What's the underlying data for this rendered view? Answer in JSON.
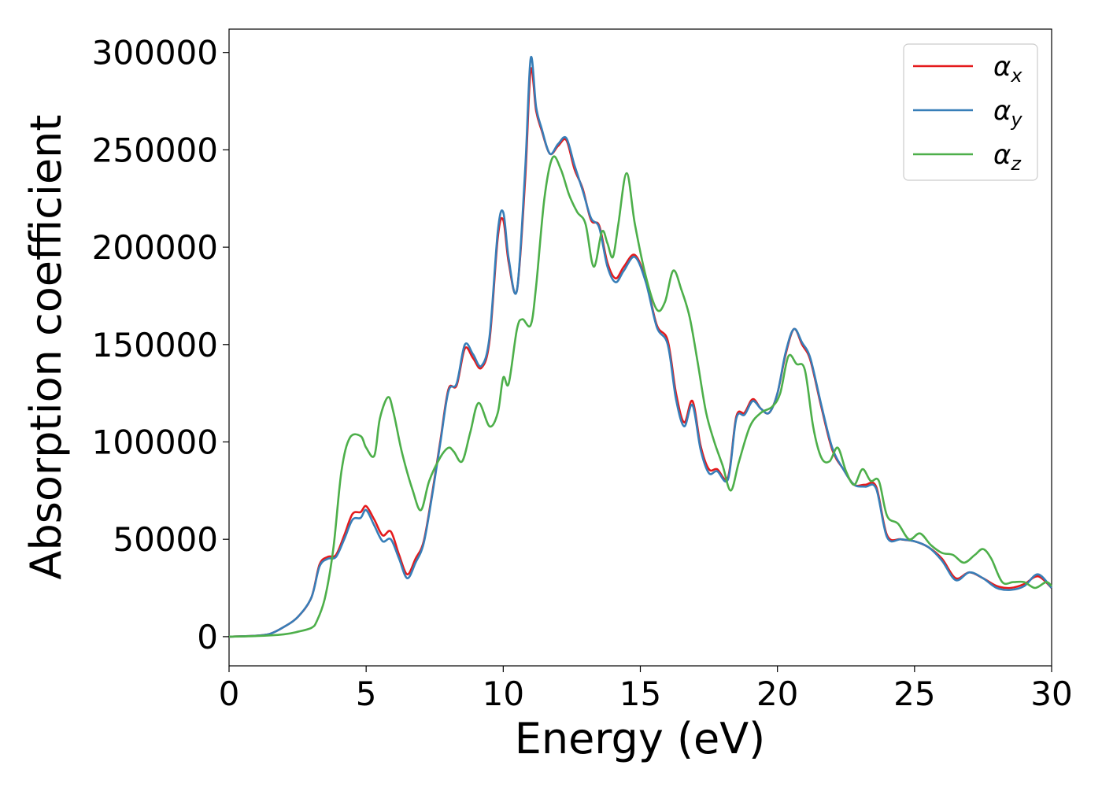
{
  "chart_data": {
    "type": "line",
    "xlabel": "Energy (eV)",
    "ylabel": "Absorption coefficient",
    "xlim": [
      0,
      30
    ],
    "ylim": [
      -15000,
      312000
    ],
    "xticks": [
      0,
      5,
      10,
      15,
      20,
      25,
      30
    ],
    "xtick_labels": [
      "0",
      "5",
      "10",
      "15",
      "20",
      "25",
      "30"
    ],
    "yticks": [
      0,
      50000,
      100000,
      150000,
      200000,
      250000,
      300000
    ],
    "ytick_labels": [
      "0",
      "50000",
      "100000",
      "150000",
      "200000",
      "250000",
      "300000"
    ],
    "grid": false,
    "legend_position": "top-right",
    "series": [
      {
        "name": "α",
        "subscript": "x",
        "color": "#e41a1c",
        "x": [
          0,
          1,
          1.5,
          2,
          2.5,
          3,
          3.3,
          3.6,
          3.9,
          4.2,
          4.5,
          4.8,
          5.0,
          5.3,
          5.6,
          5.9,
          6.2,
          6.5,
          6.8,
          7.1,
          7.4,
          7.7,
          8.0,
          8.3,
          8.6,
          8.9,
          9.2,
          9.5,
          9.8,
          10.0,
          10.2,
          10.5,
          10.8,
          11.0,
          11.2,
          11.4,
          11.7,
          12.0,
          12.3,
          12.6,
          12.9,
          13.2,
          13.5,
          13.8,
          14.1,
          14.4,
          14.8,
          15.2,
          15.6,
          16.0,
          16.3,
          16.6,
          16.9,
          17.2,
          17.5,
          17.8,
          18.2,
          18.5,
          18.8,
          19.1,
          19.4,
          19.7,
          20.0,
          20.3,
          20.6,
          20.9,
          21.2,
          21.6,
          22.0,
          22.4,
          22.8,
          23.2,
          23.6,
          24.0,
          24.5,
          25.0,
          25.5,
          26.0,
          26.5,
          27.0,
          27.5,
          28.0,
          28.5,
          29.0,
          29.5,
          30.0
        ],
        "y": [
          0,
          500,
          1500,
          5000,
          10000,
          20000,
          37000,
          41000,
          42000,
          52000,
          63000,
          64000,
          67000,
          60000,
          52000,
          54000,
          42000,
          32000,
          40000,
          49000,
          73000,
          100000,
          127000,
          129000,
          148000,
          143000,
          138000,
          152000,
          205000,
          214000,
          192000,
          178000,
          235000,
          291000,
          270000,
          260000,
          248000,
          252000,
          255000,
          240000,
          230000,
          214000,
          211000,
          192000,
          184000,
          190000,
          196000,
          183000,
          160000,
          152000,
          125000,
          110000,
          121000,
          98000,
          86000,
          86000,
          82000,
          113000,
          115000,
          122000,
          117000,
          115000,
          125000,
          145000,
          158000,
          150000,
          142000,
          118000,
          96000,
          86000,
          78000,
          78000,
          77000,
          52000,
          50000,
          49000,
          46000,
          40000,
          30000,
          33000,
          30000,
          26000,
          25000,
          27000,
          31000,
          25000
        ]
      },
      {
        "name": "α",
        "subscript": "y",
        "color": "#377eb8",
        "x": [
          0,
          1,
          1.5,
          2,
          2.5,
          3,
          3.3,
          3.6,
          3.9,
          4.2,
          4.5,
          4.8,
          5.0,
          5.3,
          5.6,
          5.9,
          6.2,
          6.5,
          6.8,
          7.1,
          7.4,
          7.7,
          8.0,
          8.3,
          8.6,
          8.9,
          9.2,
          9.5,
          9.8,
          10.0,
          10.2,
          10.5,
          10.8,
          11.0,
          11.2,
          11.4,
          11.7,
          12.0,
          12.3,
          12.6,
          12.9,
          13.2,
          13.5,
          13.8,
          14.1,
          14.4,
          14.8,
          15.2,
          15.6,
          16.0,
          16.3,
          16.6,
          16.9,
          17.2,
          17.5,
          17.8,
          18.2,
          18.5,
          18.8,
          19.1,
          19.4,
          19.7,
          20.0,
          20.3,
          20.6,
          20.9,
          21.2,
          21.6,
          22.0,
          22.4,
          22.8,
          23.2,
          23.6,
          24.0,
          24.5,
          25.0,
          25.5,
          26.0,
          26.5,
          27.0,
          27.5,
          28.0,
          28.5,
          29.0,
          29.5,
          30.0
        ],
        "y": [
          0,
          500,
          1500,
          5000,
          10000,
          20000,
          36000,
          40000,
          41000,
          50000,
          60000,
          61000,
          65000,
          57000,
          49000,
          50000,
          40000,
          30000,
          38000,
          48000,
          72000,
          99000,
          126000,
          130000,
          150000,
          145000,
          139000,
          154000,
          208000,
          218000,
          194000,
          178000,
          240000,
          297000,
          272000,
          261000,
          248000,
          253000,
          256000,
          242000,
          229000,
          215000,
          210000,
          190000,
          182000,
          188000,
          195000,
          182000,
          159000,
          150000,
          122000,
          108000,
          119000,
          96000,
          84000,
          85000,
          81000,
          112000,
          114000,
          121000,
          117000,
          115000,
          125000,
          146000,
          158000,
          151000,
          143000,
          119000,
          97000,
          86000,
          78000,
          77000,
          76000,
          51000,
          50000,
          49000,
          46000,
          39000,
          29000,
          33000,
          30000,
          25000,
          24000,
          26000,
          32000,
          25000
        ]
      },
      {
        "name": "α",
        "subscript": "z",
        "color": "#4daf4a",
        "x": [
          0,
          1,
          2,
          2.5,
          3.0,
          3.2,
          3.5,
          3.8,
          4.1,
          4.4,
          4.8,
          5.0,
          5.3,
          5.5,
          5.8,
          6.0,
          6.3,
          6.7,
          7.0,
          7.3,
          7.7,
          8.0,
          8.2,
          8.5,
          8.8,
          9.1,
          9.5,
          9.8,
          10.0,
          10.2,
          10.5,
          10.7,
          11.0,
          11.2,
          11.5,
          11.8,
          12.1,
          12.4,
          12.7,
          13.0,
          13.3,
          13.6,
          13.8,
          14.0,
          14.2,
          14.5,
          14.8,
          15.2,
          15.6,
          15.9,
          16.2,
          16.5,
          16.8,
          17.1,
          17.4,
          17.7,
          18.0,
          18.3,
          18.6,
          19.0,
          19.4,
          19.8,
          20.1,
          20.4,
          20.7,
          21.0,
          21.3,
          21.6,
          21.9,
          22.2,
          22.5,
          22.8,
          23.1,
          23.4,
          23.7,
          24.0,
          24.4,
          24.8,
          25.2,
          25.6,
          26.0,
          26.4,
          26.8,
          27.2,
          27.5,
          27.8,
          28.2,
          28.6,
          29.0,
          29.4,
          29.8,
          30.0
        ],
        "y": [
          0,
          300,
          1200,
          2500,
          4500,
          8000,
          20000,
          45000,
          85000,
          102000,
          103000,
          97000,
          93000,
          112000,
          123000,
          115000,
          95000,
          75000,
          65000,
          80000,
          92000,
          97000,
          95000,
          90000,
          105000,
          120000,
          108000,
          115000,
          133000,
          130000,
          158000,
          163000,
          160000,
          180000,
          225000,
          246000,
          240000,
          227000,
          218000,
          212000,
          190000,
          208000,
          202000,
          195000,
          212000,
          238000,
          212000,
          185000,
          168000,
          172000,
          188000,
          178000,
          164000,
          140000,
          115000,
          100000,
          88000,
          75000,
          90000,
          108000,
          115000,
          118000,
          125000,
          144000,
          140000,
          137000,
          108000,
          92000,
          90000,
          97000,
          85000,
          78000,
          86000,
          80000,
          80000,
          62000,
          58000,
          50000,
          53000,
          47000,
          43000,
          42000,
          38000,
          42000,
          45000,
          40000,
          28000,
          28000,
          28000,
          25000,
          28000,
          26000
        ]
      }
    ]
  }
}
